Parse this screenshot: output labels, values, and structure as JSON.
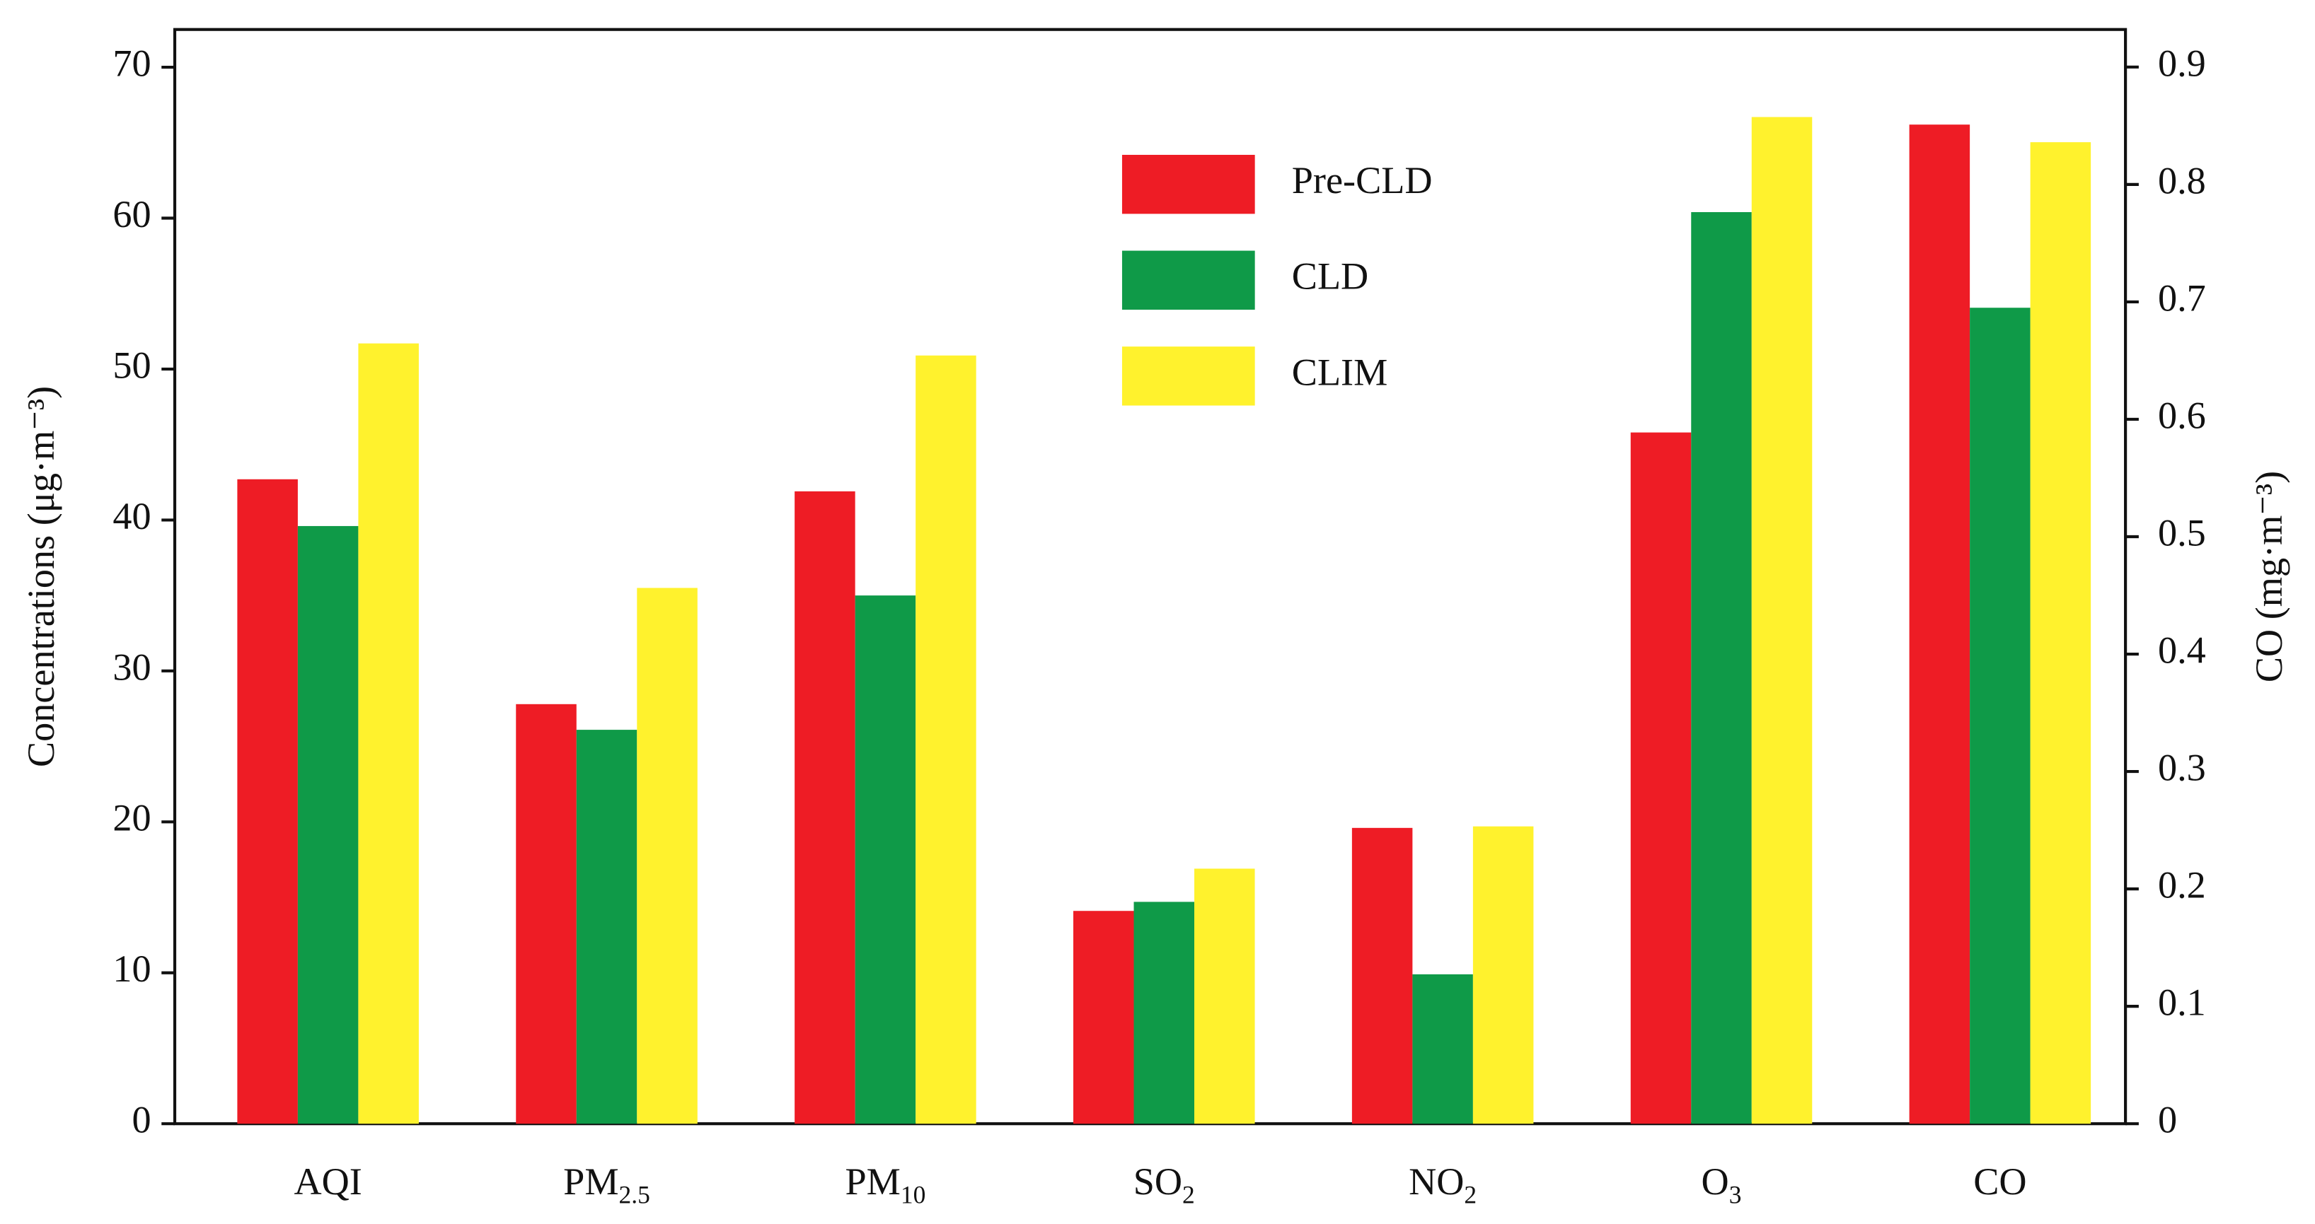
{
  "chart_data": {
    "type": "bar",
    "ylabel": "Concentrations (μg·m⁻³)",
    "y2label": "CO (mg·m⁻³)",
    "categories": [
      "AQI",
      "PM",
      "PM",
      "SO",
      "NO",
      "O",
      "CO"
    ],
    "category_subscripts": [
      null,
      "2.5",
      "10",
      "2",
      "2",
      "3",
      null
    ],
    "y2_category_index": 6,
    "series": [
      {
        "name": "Pre-CLD",
        "color": "#ee1c25",
        "values": [
          42.7,
          27.8,
          41.9,
          14.1,
          19.6,
          45.8,
          0.851
        ]
      },
      {
        "name": "CLD",
        "color": "#0f9a48",
        "values": [
          39.6,
          26.1,
          35.0,
          14.7,
          9.9,
          60.4,
          0.695
        ]
      },
      {
        "name": "CLIM",
        "color": "#fff22d",
        "values": [
          51.7,
          35.5,
          50.9,
          16.9,
          19.7,
          66.7,
          0.836
        ]
      }
    ],
    "ylim": [
      0,
      72.5
    ],
    "yticks": [
      0,
      10,
      20,
      30,
      40,
      50,
      60,
      70
    ],
    "y2lim": [
      0,
      0.932
    ],
    "y2ticks": [
      0,
      0.1,
      0.2,
      0.3,
      0.4,
      0.5,
      0.6,
      0.7,
      0.8,
      0.9
    ],
    "legend": "top-center"
  }
}
